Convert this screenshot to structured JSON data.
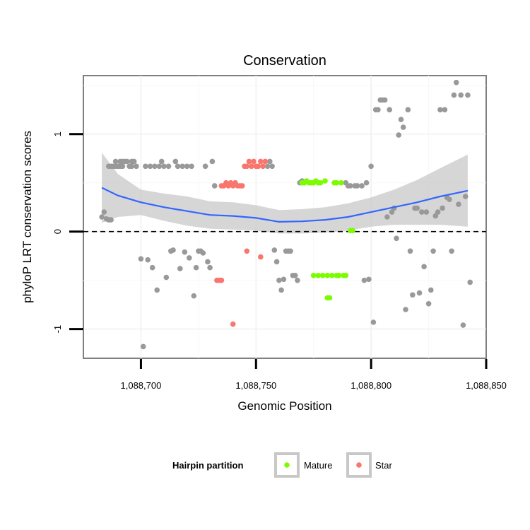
{
  "chart_data": {
    "type": "scatter",
    "title": "Conservation",
    "xlabel": "Genomic Position",
    "ylabel": "phyloP LRT conservation scores",
    "xlim": [
      1088675,
      1088850
    ],
    "ylim": [
      -1.3,
      1.6
    ],
    "x_ticks": [
      {
        "value": 1088700,
        "label": "1,088,700"
      },
      {
        "value": 1088750,
        "label": "1,088,750"
      },
      {
        "value": 1088800,
        "label": "1,088,800"
      },
      {
        "value": 1088850,
        "label": "1,088,850"
      }
    ],
    "y_ticks": [
      {
        "value": -1,
        "label": "-1"
      },
      {
        "value": 0,
        "label": "0"
      },
      {
        "value": 1,
        "label": "1"
      }
    ],
    "reference_line": {
      "y": 0,
      "style": "dashed",
      "color": "#000000"
    },
    "legend": {
      "title": "Hairpin partition",
      "position": "bottom",
      "entries": [
        {
          "name": "Mature",
          "color": "#7CFC00"
        },
        {
          "name": "Star",
          "color": "#F8766D"
        }
      ]
    },
    "colors": {
      "other": "#999999",
      "Mature": "#7CFC00",
      "Star": "#F8766D",
      "smooth_line": "#3366FF",
      "ribbon": "#C8C8C8"
    },
    "series": [
      {
        "name": "Other",
        "points": [
          [
            1088683,
            0.15
          ],
          [
            1088684,
            0.2
          ],
          [
            1088685,
            0.13
          ],
          [
            1088686,
            0.12
          ],
          [
            1088687,
            0.12
          ],
          [
            1088686,
            0.67
          ],
          [
            1088687,
            0.67
          ],
          [
            1088688,
            0.67
          ],
          [
            1088689,
            0.72
          ],
          [
            1088689,
            0.67
          ],
          [
            1088690,
            0.67
          ],
          [
            1088691,
            0.72
          ],
          [
            1088691,
            0.67
          ],
          [
            1088692,
            0.72
          ],
          [
            1088692,
            0.67
          ],
          [
            1088693,
            0.72
          ],
          [
            1088694,
            0.72
          ],
          [
            1088695,
            0.67
          ],
          [
            1088696,
            0.72
          ],
          [
            1088696,
            0.67
          ],
          [
            1088697,
            0.72
          ],
          [
            1088698,
            0.67
          ],
          [
            1088700,
            -0.28
          ],
          [
            1088701,
            -1.18
          ],
          [
            1088702,
            0.67
          ],
          [
            1088703,
            -0.29
          ],
          [
            1088704,
            0.67
          ],
          [
            1088705,
            -0.37
          ],
          [
            1088706,
            0.67
          ],
          [
            1088707,
            -0.6
          ],
          [
            1088708,
            0.67
          ],
          [
            1088709,
            0.72
          ],
          [
            1088710,
            0.67
          ],
          [
            1088711,
            -0.47
          ],
          [
            1088712,
            0.67
          ],
          [
            1088713,
            -0.2
          ],
          [
            1088714,
            -0.19
          ],
          [
            1088715,
            0.72
          ],
          [
            1088716,
            0.67
          ],
          [
            1088717,
            -0.38
          ],
          [
            1088718,
            0.67
          ],
          [
            1088719,
            -0.21
          ],
          [
            1088720,
            0.67
          ],
          [
            1088721,
            -0.27
          ],
          [
            1088722,
            0.67
          ],
          [
            1088723,
            -0.66
          ],
          [
            1088724,
            -0.37
          ],
          [
            1088725,
            -0.2
          ],
          [
            1088726,
            -0.2
          ],
          [
            1088727,
            -0.22
          ],
          [
            1088728,
            0.67
          ],
          [
            1088729,
            -0.31
          ],
          [
            1088730,
            -0.37
          ],
          [
            1088731,
            0.72
          ],
          [
            1088732,
            0.47
          ],
          [
            1088755,
            0.67
          ],
          [
            1088756,
            0.72
          ],
          [
            1088757,
            0.67
          ],
          [
            1088758,
            -0.19
          ],
          [
            1088759,
            -0.31
          ],
          [
            1088760,
            -0.5
          ],
          [
            1088761,
            -0.6
          ],
          [
            1088762,
            -0.49
          ],
          [
            1088763,
            -0.2
          ],
          [
            1088764,
            -0.2
          ],
          [
            1088765,
            -0.2
          ],
          [
            1088766,
            -0.45
          ],
          [
            1088767,
            -0.45
          ],
          [
            1088768,
            -0.5
          ],
          [
            1088769,
            0.5
          ],
          [
            1088770,
            0.52
          ],
          [
            1088789,
            0.5
          ],
          [
            1088790,
            0.47
          ],
          [
            1088791,
            0.47
          ],
          [
            1088793,
            0.47
          ],
          [
            1088794,
            0.47
          ],
          [
            1088796,
            0.47
          ],
          [
            1088797,
            -0.5
          ],
          [
            1088798,
            0.5
          ],
          [
            1088799,
            -0.49
          ],
          [
            1088800,
            0.67
          ],
          [
            1088801,
            -0.93
          ],
          [
            1088802,
            1.25
          ],
          [
            1088803,
            1.25
          ],
          [
            1088804,
            1.35
          ],
          [
            1088805,
            1.35
          ],
          [
            1088806,
            1.35
          ],
          [
            1088807,
            0.15
          ],
          [
            1088808,
            1.25
          ],
          [
            1088809,
            0.2
          ],
          [
            1088810,
            0.24
          ],
          [
            1088811,
            -0.07
          ],
          [
            1088812,
            0.99
          ],
          [
            1088813,
            1.15
          ],
          [
            1088814,
            1.07
          ],
          [
            1088815,
            -0.8
          ],
          [
            1088816,
            1.25
          ],
          [
            1088817,
            -0.2
          ],
          [
            1088818,
            -0.65
          ],
          [
            1088819,
            0.24
          ],
          [
            1088820,
            0.24
          ],
          [
            1088821,
            -0.63
          ],
          [
            1088822,
            0.2
          ],
          [
            1088823,
            -0.36
          ],
          [
            1088824,
            0.2
          ],
          [
            1088825,
            -0.74
          ],
          [
            1088826,
            -0.6
          ],
          [
            1088827,
            -0.2
          ],
          [
            1088828,
            0.16
          ],
          [
            1088829,
            0.2
          ],
          [
            1088830,
            1.25
          ],
          [
            1088831,
            0.24
          ],
          [
            1088832,
            1.25
          ],
          [
            1088833,
            0.35
          ],
          [
            1088834,
            0.33
          ],
          [
            1088835,
            -0.2
          ],
          [
            1088836,
            1.4
          ],
          [
            1088837,
            1.53
          ],
          [
            1088838,
            0.28
          ],
          [
            1088839,
            1.4
          ],
          [
            1088840,
            -0.96
          ],
          [
            1088841,
            0.36
          ],
          [
            1088842,
            1.4
          ],
          [
            1088843,
            -0.52
          ]
        ]
      },
      {
        "name": "Star",
        "points": [
          [
            1088733,
            -0.5
          ],
          [
            1088734,
            -0.5
          ],
          [
            1088735,
            -0.5
          ],
          [
            1088735,
            0.47
          ],
          [
            1088736,
            0.47
          ],
          [
            1088737,
            0.5
          ],
          [
            1088738,
            0.47
          ],
          [
            1088739,
            0.5
          ],
          [
            1088740,
            -0.95
          ],
          [
            1088740,
            0.47
          ],
          [
            1088741,
            0.5
          ],
          [
            1088742,
            0.47
          ],
          [
            1088743,
            0.47
          ],
          [
            1088744,
            0.47
          ],
          [
            1088745,
            0.67
          ],
          [
            1088746,
            -0.2
          ],
          [
            1088746,
            0.67
          ],
          [
            1088747,
            0.72
          ],
          [
            1088748,
            0.67
          ],
          [
            1088749,
            0.72
          ],
          [
            1088750,
            0.67
          ],
          [
            1088751,
            0.67
          ],
          [
            1088752,
            -0.26
          ],
          [
            1088752,
            0.72
          ],
          [
            1088753,
            0.67
          ],
          [
            1088754,
            0.72
          ]
        ]
      },
      {
        "name": "Mature",
        "points": [
          [
            1088770,
            0.5
          ],
          [
            1088771,
            0.5
          ],
          [
            1088772,
            0.52
          ],
          [
            1088773,
            0.5
          ],
          [
            1088774,
            0.5
          ],
          [
            1088775,
            -0.45
          ],
          [
            1088775,
            0.5
          ],
          [
            1088776,
            0.52
          ],
          [
            1088777,
            -0.45
          ],
          [
            1088777,
            0.5
          ],
          [
            1088778,
            0.5
          ],
          [
            1088779,
            -0.45
          ],
          [
            1088780,
            0.52
          ],
          [
            1088781,
            -0.45
          ],
          [
            1088781,
            -0.68
          ],
          [
            1088782,
            -0.68
          ],
          [
            1088783,
            -0.45
          ],
          [
            1088784,
            0.5
          ],
          [
            1088785,
            -0.45
          ],
          [
            1088785,
            0.5
          ],
          [
            1088786,
            -0.45
          ],
          [
            1088787,
            0.5
          ],
          [
            1088788,
            -0.45
          ],
          [
            1088789,
            -0.45
          ],
          [
            1088791,
            0.01
          ],
          [
            1088792,
            0.01
          ]
        ]
      }
    ],
    "smooth": {
      "x": [
        1088683,
        1088690,
        1088700,
        1088710,
        1088720,
        1088730,
        1088740,
        1088750,
        1088760,
        1088770,
        1088780,
        1088790,
        1088800,
        1088810,
        1088820,
        1088830,
        1088842
      ],
      "y": [
        0.45,
        0.37,
        0.3,
        0.25,
        0.21,
        0.17,
        0.16,
        0.14,
        0.1,
        0.105,
        0.12,
        0.15,
        0.2,
        0.25,
        0.3,
        0.36,
        0.42
      ],
      "lower": [
        0.09,
        0.15,
        0.17,
        0.11,
        0.06,
        0.03,
        0.02,
        0.01,
        -0.02,
        -0.02,
        -0.01,
        0.01,
        0.05,
        0.07,
        0.07,
        0.07,
        0.05
      ],
      "upper": [
        0.81,
        0.59,
        0.43,
        0.39,
        0.36,
        0.31,
        0.3,
        0.27,
        0.22,
        0.23,
        0.25,
        0.29,
        0.35,
        0.43,
        0.53,
        0.65,
        0.79
      ]
    }
  }
}
